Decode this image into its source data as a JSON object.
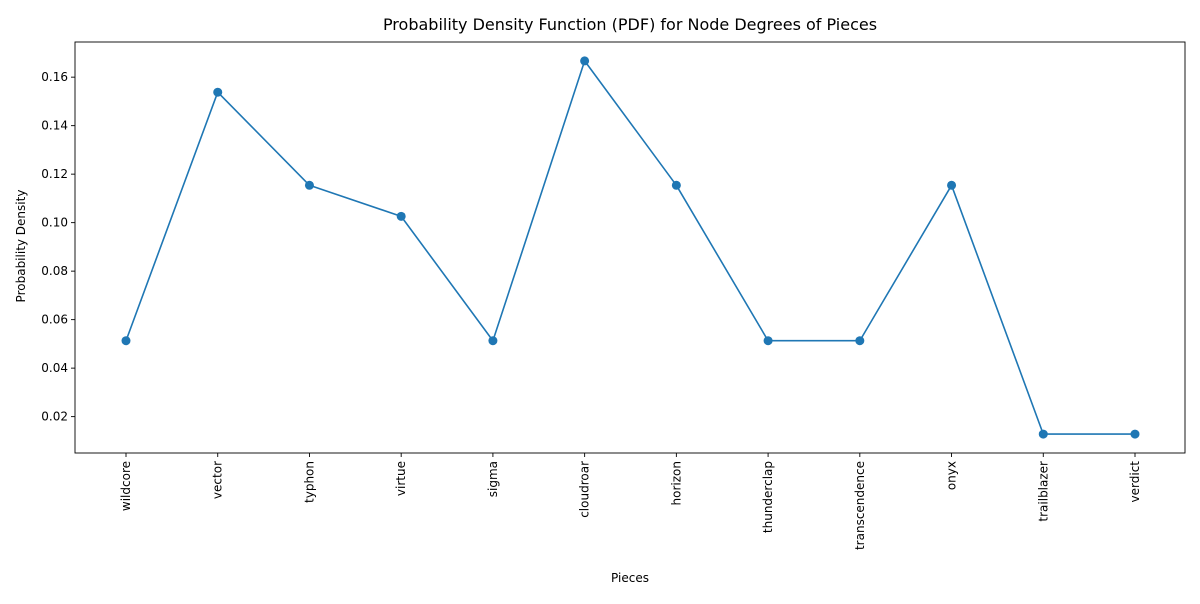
{
  "chart_data": {
    "type": "line",
    "title": "Probability Density Function (PDF) for Node Degrees of Pieces",
    "xlabel": "Pieces",
    "ylabel": "Probability Density",
    "categories": [
      "wildcore",
      "vector",
      "typhon",
      "virtue",
      "sigma",
      "cloudroar",
      "horizon",
      "thunderclap",
      "transcendence",
      "onyx",
      "trailblazer",
      "verdict"
    ],
    "series": [
      {
        "values": [
          0.0513,
          0.1538,
          0.1154,
          0.1026,
          0.0513,
          0.1667,
          0.1154,
          0.0513,
          0.0513,
          0.1154,
          0.0128,
          0.0128
        ]
      }
    ],
    "ylim": [
      0.005,
      0.1745
    ],
    "yticks": [
      0.02,
      0.04,
      0.06,
      0.08,
      0.1,
      0.12,
      0.14,
      0.16
    ],
    "ytick_labels": [
      "0.02",
      "0.04",
      "0.06",
      "0.08",
      "0.10",
      "0.12",
      "0.14",
      "0.16"
    ],
    "grid": false,
    "marker": "circle",
    "color": "#1f77b4"
  }
}
